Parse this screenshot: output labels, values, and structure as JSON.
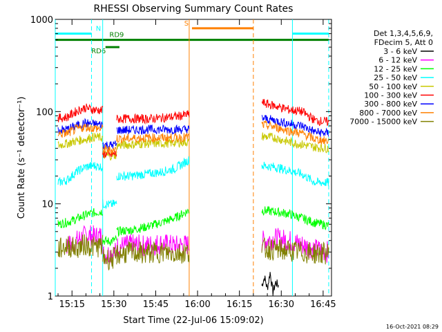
{
  "chart_data": {
    "type": "line",
    "title": "RHESSI Observing Summary Count Rates",
    "xlabel": "Start Time (22-Jul-06 15:09:02)",
    "ylabel": "Count Rate (s⁻¹ detector⁻¹)",
    "yscale": "log",
    "ylim": [
      1,
      1000
    ],
    "xlim": [
      "15:09",
      "16:48"
    ],
    "x_ticks": [
      "15:15",
      "15:30",
      "15:45",
      "16:00",
      "16:15",
      "16:30",
      "16:45"
    ],
    "y_ticks": [
      "1",
      "10",
      "100",
      "1000"
    ],
    "timestamp": "16-Oct-2021 08:29",
    "legend_header": [
      "Det 1,3,4,5,6,9,",
      "FDecim 5, Att 0"
    ],
    "legend_position": "right",
    "flags": [
      {
        "label": "N",
        "color": "#00ffff",
        "y": 700,
        "segments": [
          [
            "15:09",
            "15:22"
          ],
          [
            "16:34",
            "16:47"
          ]
        ]
      },
      {
        "label": "S",
        "color": "#ff8000",
        "y": 800,
        "segments": [
          [
            "15:58",
            "16:20"
          ]
        ]
      },
      {
        "label": "RD9",
        "color": "#008000",
        "y": 600,
        "segments": [
          [
            "15:09",
            "16:47"
          ]
        ]
      },
      {
        "label": "RD6",
        "color": "#008000",
        "y": 500,
        "segments": [
          [
            "15:27",
            "15:32"
          ]
        ]
      }
    ],
    "vlines": [
      {
        "time": "15:09",
        "color": "#00ffff",
        "style": "solid"
      },
      {
        "time": "15:22",
        "color": "#00ffff",
        "style": "dashed"
      },
      {
        "time": "15:26",
        "color": "#00ffff",
        "style": "solid"
      },
      {
        "time": "15:57",
        "color": "#ff8000",
        "style": "solid"
      },
      {
        "time": "16:20",
        "color": "#ff8000",
        "style": "dashed"
      },
      {
        "time": "16:34",
        "color": "#00ffff",
        "style": "solid"
      },
      {
        "time": "16:47",
        "color": "#00ffff",
        "style": "dashed"
      }
    ],
    "series": [
      {
        "name": "3 - 6 keV",
        "color": "#000000",
        "segments": [
          {
            "t0": "16:23",
            "t1": "16:29",
            "values": [
              1.3,
              1.6,
              1.2,
              1.8,
              1.1,
              1.4,
              1.3
            ]
          }
        ]
      },
      {
        "name": "6 - 12 keV",
        "color": "#ff00ff",
        "segments": [
          {
            "t0": "15:13",
            "t1": "15:26",
            "values": [
              3.5,
              3.7,
              4.3,
              4.6,
              4.4,
              4.5
            ]
          },
          {
            "t0": "15:26",
            "t1": "15:31",
            "values": [
              2.8,
              2.9,
              3.0
            ]
          },
          {
            "t0": "15:31",
            "t1": "15:57",
            "values": [
              3.4,
              3.6,
              3.5,
              3.7,
              3.5,
              3.6
            ]
          },
          {
            "t0": "16:23",
            "t1": "16:47",
            "values": [
              3.9,
              4.2,
              4.0,
              3.6,
              3.2,
              3.0
            ]
          }
        ]
      },
      {
        "name": "12 - 25 keV",
        "color": "#00ff00",
        "segments": [
          {
            "t0": "15:10",
            "t1": "15:26",
            "values": [
              6.0,
              6.3,
              6.8,
              7.5,
              8.0,
              8.3
            ]
          },
          {
            "t0": "15:26",
            "t1": "15:31",
            "values": [
              4.0,
              3.9,
              4.1
            ]
          },
          {
            "t0": "15:31",
            "t1": "15:57",
            "values": [
              5.0,
              5.2,
              5.6,
              6.2,
              7.0,
              8.5
            ]
          },
          {
            "t0": "16:23",
            "t1": "16:47",
            "values": [
              8.5,
              8.2,
              7.8,
              7.0,
              6.2,
              5.8
            ]
          }
        ]
      },
      {
        "name": "25 - 50 keV",
        "color": "#00ffff",
        "segments": [
          {
            "t0": "15:10",
            "t1": "15:26",
            "values": [
              17,
              18,
              22,
              25,
              26,
              25
            ]
          },
          {
            "t0": "15:26",
            "t1": "15:31",
            "values": [
              10,
              9.8,
              10
            ]
          },
          {
            "t0": "15:31",
            "t1": "15:57",
            "values": [
              20,
              20,
              21,
              22,
              24,
              30
            ]
          },
          {
            "t0": "16:23",
            "t1": "16:47",
            "values": [
              26,
              25,
              23,
              21,
              17,
              17
            ]
          }
        ]
      },
      {
        "name": "50 - 100 keV",
        "color": "#c8c800",
        "segments": [
          {
            "t0": "15:10",
            "t1": "15:26",
            "values": [
              43,
              45,
              48,
              50,
              53,
              52
            ]
          },
          {
            "t0": "15:26",
            "t1": "15:31",
            "values": [
              34,
              33,
              34
            ]
          },
          {
            "t0": "15:31",
            "t1": "15:57",
            "values": [
              43,
              44,
              45,
              45,
              46,
              47
            ]
          },
          {
            "t0": "16:23",
            "t1": "16:47",
            "values": [
              54,
              52,
              47,
              44,
              41,
              40
            ]
          }
        ]
      },
      {
        "name": "100 - 300 keV",
        "color": "#ff0000",
        "segments": [
          {
            "t0": "15:10",
            "t1": "15:26",
            "values": [
              85,
              87,
              100,
              110,
              105,
              103
            ]
          },
          {
            "t0": "15:26",
            "t1": "15:31",
            "values": [
              35,
              34,
              35
            ]
          },
          {
            "t0": "15:31",
            "t1": "15:57",
            "values": [
              83,
              84,
              83,
              85,
              88,
              93
            ]
          },
          {
            "t0": "16:23",
            "t1": "16:47",
            "values": [
              125,
              115,
              105,
              100,
              80,
              77
            ]
          }
        ]
      },
      {
        "name": "300 - 800 keV",
        "color": "#0000ff",
        "segments": [
          {
            "t0": "15:10",
            "t1": "15:26",
            "values": [
              63,
              64,
              70,
              75,
              73,
              72
            ]
          },
          {
            "t0": "15:26",
            "t1": "15:31",
            "values": [
              44,
              43,
              44
            ]
          },
          {
            "t0": "15:31",
            "t1": "15:57",
            "values": [
              63,
              63,
              64,
              64,
              64,
              64
            ]
          },
          {
            "t0": "16:23",
            "t1": "16:47",
            "values": [
              85,
              80,
              74,
              70,
              60,
              58
            ]
          }
        ]
      },
      {
        "name": "800 - 7000 keV",
        "color": "#ff8000",
        "segments": [
          {
            "t0": "15:10",
            "t1": "15:26",
            "values": [
              57,
              58,
              64,
              68,
              66,
              65
            ]
          },
          {
            "t0": "15:26",
            "t1": "15:31",
            "values": [
              39,
              38,
              39
            ]
          },
          {
            "t0": "15:31",
            "t1": "15:57",
            "values": [
              51,
              51,
              52,
              52,
              52,
              53
            ]
          },
          {
            "t0": "16:23",
            "t1": "16:47",
            "values": [
              72,
              68,
              62,
              58,
              50,
              48
            ]
          }
        ]
      },
      {
        "name": "7000 - 15000 keV",
        "color": "#808000",
        "segments": [
          {
            "t0": "15:10",
            "t1": "15:26",
            "values": [
              3.2,
              3.5,
              3.3,
              3.6,
              3.4,
              3.5
            ]
          },
          {
            "t0": "15:26",
            "t1": "15:31",
            "values": [
              2.6,
              2.5,
              2.6
            ]
          },
          {
            "t0": "15:31",
            "t1": "15:57",
            "values": [
              2.8,
              3.0,
              2.9,
              3.0,
              2.9,
              3.0
            ]
          },
          {
            "t0": "16:23",
            "t1": "16:47",
            "values": [
              3.3,
              3.2,
              3.1,
              3.0,
              2.9,
              2.9
            ]
          }
        ]
      }
    ]
  }
}
